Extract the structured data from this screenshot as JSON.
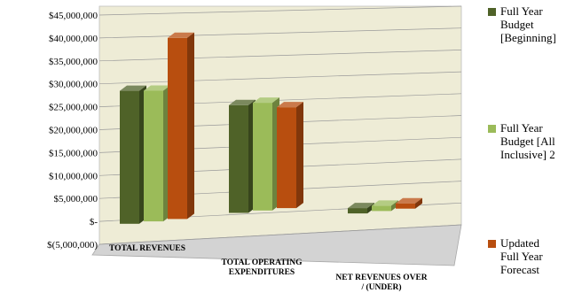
{
  "chart_data": {
    "type": "bar",
    "title": "",
    "xlabel": "",
    "ylabel": "",
    "categories": [
      "TOTAL REVENUES",
      "TOTAL OPERATING EXPENDITURES",
      "NET REVENUES OVER / (UNDER)"
    ],
    "category_lines": [
      [
        "TOTAL REVENUES"
      ],
      [
        "TOTAL OPERATING",
        "EXPENDITURES"
      ],
      [
        "NET REVENUES OVER",
        "/ (UNDER)"
      ]
    ],
    "series": [
      {
        "name": "Full Year Budget [Beginning]",
        "name_lines": [
          "Full Year",
          "Budget",
          "[Beginning]"
        ],
        "color": "#4f6228",
        "values": [
          29000000,
          23500000,
          -1500000
        ]
      },
      {
        "name": "Full Year Budget [All Inclusive] 2",
        "name_lines": [
          "Full Year",
          "Budget [All",
          "Inclusive] 2"
        ],
        "color": "#9bbb59",
        "values": [
          28500000,
          23500000,
          -1500000
        ]
      },
      {
        "name": "Updated Full Year Forecast",
        "name_lines": [
          "Updated",
          "Full Year",
          "Forecast"
        ],
        "color": "#b84e0f",
        "values": [
          39500000,
          22000000,
          -1500000
        ]
      }
    ],
    "y_ticks": [
      45000000,
      40000000,
      35000000,
      30000000,
      25000000,
      20000000,
      15000000,
      10000000,
      5000000,
      0,
      -5000000
    ],
    "y_tick_labels": [
      "$45,000,000",
      "$40,000,000",
      "$35,000,000",
      "$30,000,000",
      "$25,000,000",
      "$20,000,000",
      "$15,000,000",
      "$10,000,000",
      "$5,000,000",
      "$-",
      "$(5,000,000)"
    ],
    "ylim": [
      -5000000,
      45000000
    ],
    "grid": true,
    "legend_position": "right",
    "style": "3d-clustered-column",
    "wall_color": "#eeecd6"
  }
}
